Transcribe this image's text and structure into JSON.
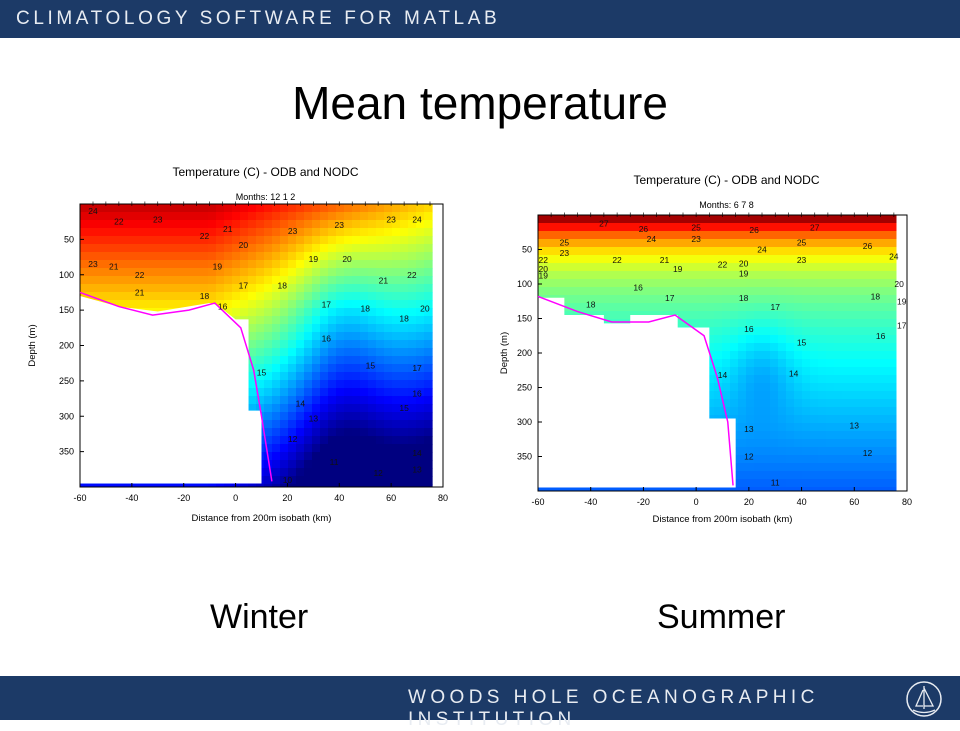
{
  "header": {
    "title": "CLIMATOLOGY SOFTWARE FOR MATLAB"
  },
  "slide": {
    "title": "Mean temperature"
  },
  "footer": {
    "institution": "WOODS HOLE OCEANOGRAPHIC INSTITUTION"
  },
  "labels": {
    "winter": "Winter",
    "summer": "Summer"
  },
  "colors": {
    "bar": "#1c3a67",
    "isobath": "#ff00ff"
  },
  "chart_data": [
    {
      "type": "contour",
      "title": "Temperature (C) - ODB and NODC",
      "subtitle": "Months: 12 1 2",
      "xlabel": "Distance from 200m isobath (km)",
      "ylabel": "Depth (m)",
      "xlim": [
        -60,
        80
      ],
      "ylim": [
        400,
        0
      ],
      "xticks": [
        "-60",
        "-40",
        "-20",
        "0",
        "20",
        "40",
        "60",
        "80"
      ],
      "yticks": [
        "50",
        "100",
        "150",
        "200",
        "250",
        "300",
        "350"
      ],
      "color_range": [
        9,
        25
      ],
      "contour_labels": [
        {
          "x": -55,
          "y": 10,
          "v": "24"
        },
        {
          "x": -45,
          "y": 25,
          "v": "22"
        },
        {
          "x": -30,
          "y": 22,
          "v": "23"
        },
        {
          "x": -12,
          "y": 45,
          "v": "22"
        },
        {
          "x": -3,
          "y": 35,
          "v": "21"
        },
        {
          "x": 3,
          "y": 58,
          "v": "20"
        },
        {
          "x": -55,
          "y": 85,
          "v": "23"
        },
        {
          "x": -47,
          "y": 88,
          "v": "21"
        },
        {
          "x": -37,
          "y": 100,
          "v": "22"
        },
        {
          "x": -37,
          "y": 125,
          "v": "21"
        },
        {
          "x": -12,
          "y": 130,
          "v": "18"
        },
        {
          "x": -7,
          "y": 88,
          "v": "19"
        },
        {
          "x": -5,
          "y": 145,
          "v": "16"
        },
        {
          "x": 3,
          "y": 115,
          "v": "17"
        },
        {
          "x": 18,
          "y": 115,
          "v": "18"
        },
        {
          "x": 22,
          "y": 38,
          "v": "23"
        },
        {
          "x": 40,
          "y": 30,
          "v": "23"
        },
        {
          "x": 60,
          "y": 22,
          "v": "23"
        },
        {
          "x": 70,
          "y": 22,
          "v": "24"
        },
        {
          "x": 30,
          "y": 78,
          "v": "19"
        },
        {
          "x": 43,
          "y": 78,
          "v": "20"
        },
        {
          "x": 68,
          "y": 100,
          "v": "22"
        },
        {
          "x": 57,
          "y": 108,
          "v": "21"
        },
        {
          "x": 73,
          "y": 148,
          "v": "20"
        },
        {
          "x": 35,
          "y": 142,
          "v": "17"
        },
        {
          "x": 50,
          "y": 148,
          "v": "18"
        },
        {
          "x": 65,
          "y": 162,
          "v": "18"
        },
        {
          "x": 35,
          "y": 190,
          "v": "16"
        },
        {
          "x": 52,
          "y": 228,
          "v": "15"
        },
        {
          "x": 10,
          "y": 238,
          "v": "15"
        },
        {
          "x": 70,
          "y": 232,
          "v": "17"
        },
        {
          "x": 70,
          "y": 268,
          "v": "16"
        },
        {
          "x": 25,
          "y": 282,
          "v": "14"
        },
        {
          "x": 65,
          "y": 288,
          "v": "15"
        },
        {
          "x": 30,
          "y": 303,
          "v": "13"
        },
        {
          "x": 22,
          "y": 332,
          "v": "12"
        },
        {
          "x": 38,
          "y": 365,
          "v": "11"
        },
        {
          "x": 70,
          "y": 352,
          "v": "14"
        },
        {
          "x": 70,
          "y": 375,
          "v": "13"
        },
        {
          "x": 20,
          "y": 390,
          "v": "10"
        },
        {
          "x": 55,
          "y": 380,
          "v": "12"
        }
      ]
    },
    {
      "type": "contour",
      "title": "Temperature (C) - ODB and NODC",
      "subtitle": "Months: 6 7 8",
      "xlabel": "Distance from 200m isobath (km)",
      "ylabel": "Depth (m)",
      "xlim": [
        -60,
        80
      ],
      "ylim": [
        400,
        0
      ],
      "xticks": [
        "-60",
        "-40",
        "-20",
        "0",
        "20",
        "40",
        "60",
        "80"
      ],
      "yticks": [
        "50",
        "100",
        "150",
        "200",
        "250",
        "300",
        "350"
      ],
      "color_range": [
        9,
        28
      ],
      "contour_labels": [
        {
          "x": -35,
          "y": 12,
          "v": "27"
        },
        {
          "x": -20,
          "y": 20,
          "v": "26"
        },
        {
          "x": 0,
          "y": 18,
          "v": "25"
        },
        {
          "x": 22,
          "y": 22,
          "v": "26"
        },
        {
          "x": 45,
          "y": 18,
          "v": "27"
        },
        {
          "x": -50,
          "y": 40,
          "v": "25"
        },
        {
          "x": -17,
          "y": 35,
          "v": "24"
        },
        {
          "x": 0,
          "y": 35,
          "v": "23"
        },
        {
          "x": 40,
          "y": 40,
          "v": "25"
        },
        {
          "x": 65,
          "y": 45,
          "v": "26"
        },
        {
          "x": -50,
          "y": 55,
          "v": "23"
        },
        {
          "x": 25,
          "y": 50,
          "v": "24"
        },
        {
          "x": 75,
          "y": 60,
          "v": "24"
        },
        {
          "x": -58,
          "y": 65,
          "v": "22"
        },
        {
          "x": -58,
          "y": 78,
          "v": "20"
        },
        {
          "x": -58,
          "y": 88,
          "v": "19"
        },
        {
          "x": -30,
          "y": 65,
          "v": "22"
        },
        {
          "x": -12,
          "y": 65,
          "v": "21"
        },
        {
          "x": 40,
          "y": 65,
          "v": "23"
        },
        {
          "x": 10,
          "y": 72,
          "v": "22"
        },
        {
          "x": 18,
          "y": 70,
          "v": "20"
        },
        {
          "x": 18,
          "y": 85,
          "v": "19"
        },
        {
          "x": -7,
          "y": 78,
          "v": "19"
        },
        {
          "x": -10,
          "y": 120,
          "v": "17"
        },
        {
          "x": -22,
          "y": 105,
          "v": "16"
        },
        {
          "x": -40,
          "y": 130,
          "v": "18"
        },
        {
          "x": 18,
          "y": 120,
          "v": "18"
        },
        {
          "x": 30,
          "y": 133,
          "v": "17"
        },
        {
          "x": 68,
          "y": 118,
          "v": "18"
        },
        {
          "x": 77,
          "y": 100,
          "v": "20"
        },
        {
          "x": 78,
          "y": 125,
          "v": "19"
        },
        {
          "x": 78,
          "y": 160,
          "v": "17"
        },
        {
          "x": 20,
          "y": 165,
          "v": "16"
        },
        {
          "x": 40,
          "y": 185,
          "v": "15"
        },
        {
          "x": 70,
          "y": 175,
          "v": "16"
        },
        {
          "x": 10,
          "y": 232,
          "v": "14"
        },
        {
          "x": 37,
          "y": 230,
          "v": "14"
        },
        {
          "x": 20,
          "y": 310,
          "v": "13"
        },
        {
          "x": 60,
          "y": 305,
          "v": "13"
        },
        {
          "x": 20,
          "y": 350,
          "v": "12"
        },
        {
          "x": 65,
          "y": 345,
          "v": "12"
        },
        {
          "x": 30,
          "y": 388,
          "v": "11"
        }
      ]
    }
  ]
}
